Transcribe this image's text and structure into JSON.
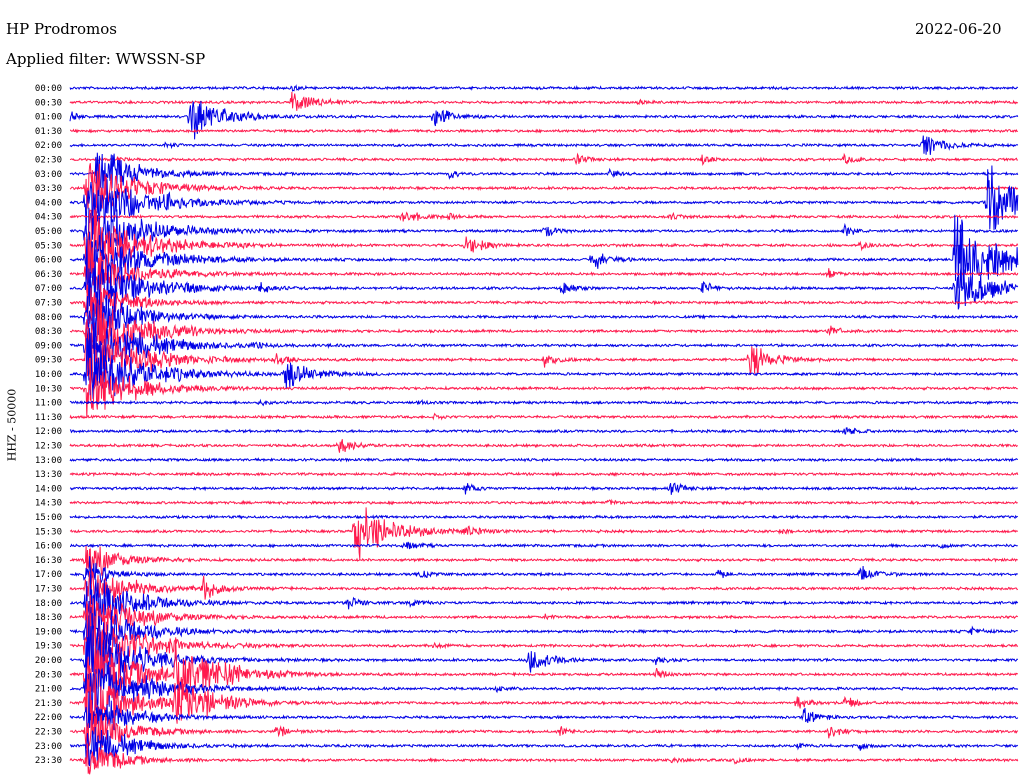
{
  "header": {
    "station": "HP Prodromos",
    "filter": "Applied filter: WWSSN-SP",
    "date": "2022-06-20"
  },
  "channel_label": "HHZ - 50000",
  "colors": {
    "blue": "#0000e6",
    "red": "#ff1a4d"
  },
  "chart_data": {
    "type": "line",
    "title": "HP Prodromos",
    "subtitle": "Applied filter: WWSSN-SP",
    "ylabel": "HHZ - 50000",
    "xlabel": "",
    "row_labels": [
      "00:00",
      "00:30",
      "01:00",
      "01:30",
      "02:00",
      "02:30",
      "03:00",
      "03:30",
      "04:00",
      "04:30",
      "05:00",
      "05:30",
      "06:00",
      "06:30",
      "07:00",
      "07:30",
      "08:00",
      "08:30",
      "09:00",
      "09:30",
      "10:00",
      "10:30",
      "11:00",
      "11:30",
      "12:00",
      "12:30",
      "13:00",
      "13:30",
      "14:00",
      "14:30",
      "15:00",
      "15:30",
      "16:00",
      "16:30",
      "17:00",
      "17:30",
      "18:00",
      "18:30",
      "19:00",
      "19:30",
      "20:00",
      "20:30",
      "21:00",
      "21:30",
      "22:00",
      "22:30",
      "23:00",
      "23:30"
    ],
    "row_colors": [
      "blue",
      "red"
    ],
    "row_minutes": 30,
    "grid": false,
    "events": [
      {
        "row": 0,
        "minute": 7,
        "amp": 0.3
      },
      {
        "row": 1,
        "minute": 7,
        "amp": 1.2
      },
      {
        "row": 1,
        "minute": 18,
        "amp": 0.2
      },
      {
        "row": 2,
        "minute": 0,
        "amp": 0.4
      },
      {
        "row": 2,
        "minute": 3.8,
        "amp": 2.0
      },
      {
        "row": 2,
        "minute": 11.5,
        "amp": 1.0
      },
      {
        "row": 4,
        "minute": 3,
        "amp": 0.3
      },
      {
        "row": 4,
        "minute": 27,
        "amp": 1.2
      },
      {
        "row": 5,
        "minute": 1.5,
        "amp": 0.3
      },
      {
        "row": 5,
        "minute": 16,
        "amp": 0.5
      },
      {
        "row": 5,
        "minute": 20,
        "amp": 0.4
      },
      {
        "row": 5,
        "minute": 24.5,
        "amp": 0.5
      },
      {
        "row": 6,
        "minute": 0.8,
        "amp": 2.5
      },
      {
        "row": 6,
        "minute": 12,
        "amp": 0.4
      },
      {
        "row": 6,
        "minute": 17,
        "amp": 0.4
      },
      {
        "row": 7,
        "minute": 0.5,
        "amp": 3.0
      },
      {
        "row": 8,
        "minute": 0.5,
        "amp": 3.5
      },
      {
        "row": 8,
        "minute": 3,
        "amp": 0.3
      },
      {
        "row": 8,
        "minute": 29,
        "amp": 3.0
      },
      {
        "row": 9,
        "minute": 10.5,
        "amp": 0.8
      },
      {
        "row": 9,
        "minute": 12,
        "amp": 0.3
      },
      {
        "row": 9,
        "minute": 19,
        "amp": 0.3
      },
      {
        "row": 10,
        "minute": 0.5,
        "amp": 3.5
      },
      {
        "row": 10,
        "minute": 15,
        "amp": 0.6
      },
      {
        "row": 10,
        "minute": 24.5,
        "amp": 0.5
      },
      {
        "row": 11,
        "minute": 0.5,
        "amp": 3.5
      },
      {
        "row": 11,
        "minute": 5,
        "amp": 0.4
      },
      {
        "row": 11,
        "minute": 12.5,
        "amp": 1.0
      },
      {
        "row": 11,
        "minute": 25,
        "amp": 0.4
      },
      {
        "row": 12,
        "minute": 0.5,
        "amp": 3.5
      },
      {
        "row": 12,
        "minute": 16.5,
        "amp": 1.0
      },
      {
        "row": 12,
        "minute": 28,
        "amp": 3.5
      },
      {
        "row": 13,
        "minute": 0.5,
        "amp": 3.0
      },
      {
        "row": 13,
        "minute": 24,
        "amp": 0.4
      },
      {
        "row": 14,
        "minute": 0.5,
        "amp": 3.5
      },
      {
        "row": 14,
        "minute": 6,
        "amp": 0.5
      },
      {
        "row": 14,
        "minute": 15.5,
        "amp": 0.6
      },
      {
        "row": 14,
        "minute": 20,
        "amp": 0.6
      },
      {
        "row": 14,
        "minute": 28,
        "amp": 2.5
      },
      {
        "row": 15,
        "minute": 0.5,
        "amp": 2.5
      },
      {
        "row": 16,
        "minute": 0.5,
        "amp": 3.0
      },
      {
        "row": 17,
        "minute": 0.5,
        "amp": 3.5
      },
      {
        "row": 17,
        "minute": 24,
        "amp": 0.5
      },
      {
        "row": 18,
        "minute": 0.5,
        "amp": 3.5
      },
      {
        "row": 18,
        "minute": 5.8,
        "amp": 0.4
      },
      {
        "row": 19,
        "minute": 0.5,
        "amp": 3.5
      },
      {
        "row": 19,
        "minute": 6.5,
        "amp": 0.6
      },
      {
        "row": 19,
        "minute": 15,
        "amp": 0.6
      },
      {
        "row": 19,
        "minute": 21.5,
        "amp": 1.5
      },
      {
        "row": 20,
        "minute": 0.5,
        "amp": 3.5
      },
      {
        "row": 20,
        "minute": 6.8,
        "amp": 1.5
      },
      {
        "row": 21,
        "minute": 0.5,
        "amp": 3.0
      },
      {
        "row": 22,
        "minute": 6,
        "amp": 0.3
      },
      {
        "row": 22,
        "minute": 11,
        "amp": 0.3
      },
      {
        "row": 23,
        "minute": 11.5,
        "amp": 0.3
      },
      {
        "row": 24,
        "minute": 24.5,
        "amp": 0.5
      },
      {
        "row": 25,
        "minute": 8.5,
        "amp": 0.8
      },
      {
        "row": 28,
        "minute": 12.5,
        "amp": 0.5
      },
      {
        "row": 28,
        "minute": 19,
        "amp": 0.6
      },
      {
        "row": 29,
        "minute": 17,
        "amp": 0.3
      },
      {
        "row": 31,
        "minute": 9,
        "amp": 2.5
      },
      {
        "row": 31,
        "minute": 12.5,
        "amp": 0.6
      },
      {
        "row": 31,
        "minute": 22.5,
        "amp": 0.3
      },
      {
        "row": 32,
        "minute": 10.5,
        "amp": 0.6
      },
      {
        "row": 32,
        "minute": 27.5,
        "amp": 0.3
      },
      {
        "row": 33,
        "minute": 0.5,
        "amp": 2.0
      },
      {
        "row": 34,
        "minute": 0.5,
        "amp": 1.5
      },
      {
        "row": 34,
        "minute": 11,
        "amp": 0.5
      },
      {
        "row": 34,
        "minute": 20.5,
        "amp": 0.4
      },
      {
        "row": 34,
        "minute": 25,
        "amp": 0.8
      },
      {
        "row": 35,
        "minute": 0.5,
        "amp": 2.5
      },
      {
        "row": 35,
        "minute": 4.2,
        "amp": 1.0
      },
      {
        "row": 36,
        "minute": 0.5,
        "amp": 3.0
      },
      {
        "row": 36,
        "minute": 8.8,
        "amp": 0.6
      },
      {
        "row": 36,
        "minute": 10.7,
        "amp": 0.5
      },
      {
        "row": 37,
        "minute": 0.5,
        "amp": 3.0
      },
      {
        "row": 37,
        "minute": 15,
        "amp": 0.3
      },
      {
        "row": 38,
        "minute": 0.5,
        "amp": 3.0
      },
      {
        "row": 38,
        "minute": 28.5,
        "amp": 0.4
      },
      {
        "row": 39,
        "minute": 0.5,
        "amp": 3.5
      },
      {
        "row": 39,
        "minute": 11.5,
        "amp": 0.3
      },
      {
        "row": 40,
        "minute": 0.5,
        "amp": 3.5
      },
      {
        "row": 40,
        "minute": 14.5,
        "amp": 1.2
      },
      {
        "row": 40,
        "minute": 18.5,
        "amp": 0.4
      },
      {
        "row": 41,
        "minute": 0.5,
        "amp": 3.5
      },
      {
        "row": 41,
        "minute": 3.3,
        "amp": 3.0
      },
      {
        "row": 41,
        "minute": 18.5,
        "amp": 0.5
      },
      {
        "row": 42,
        "minute": 0.5,
        "amp": 3.5
      },
      {
        "row": 42,
        "minute": 13.5,
        "amp": 0.3
      },
      {
        "row": 43,
        "minute": 0.5,
        "amp": 3.0
      },
      {
        "row": 43,
        "minute": 3.3,
        "amp": 2.5
      },
      {
        "row": 43,
        "minute": 23,
        "amp": 0.6
      },
      {
        "row": 43,
        "minute": 24.5,
        "amp": 0.6
      },
      {
        "row": 44,
        "minute": 0.5,
        "amp": 2.5
      },
      {
        "row": 44,
        "minute": 23.2,
        "amp": 0.8
      },
      {
        "row": 45,
        "minute": 0.5,
        "amp": 2.5
      },
      {
        "row": 45,
        "minute": 6.5,
        "amp": 0.6
      },
      {
        "row": 45,
        "minute": 15.5,
        "amp": 0.4
      },
      {
        "row": 45,
        "minute": 24,
        "amp": 0.6
      },
      {
        "row": 46,
        "minute": 0.5,
        "amp": 2.5
      },
      {
        "row": 46,
        "minute": 23,
        "amp": 0.3
      },
      {
        "row": 46,
        "minute": 25,
        "amp": 0.4
      },
      {
        "row": 47,
        "minute": 0.5,
        "amp": 2.0
      },
      {
        "row": 47,
        "minute": 19,
        "amp": 0.3
      },
      {
        "row": 47,
        "minute": 21,
        "amp": 0.3
      }
    ]
  }
}
